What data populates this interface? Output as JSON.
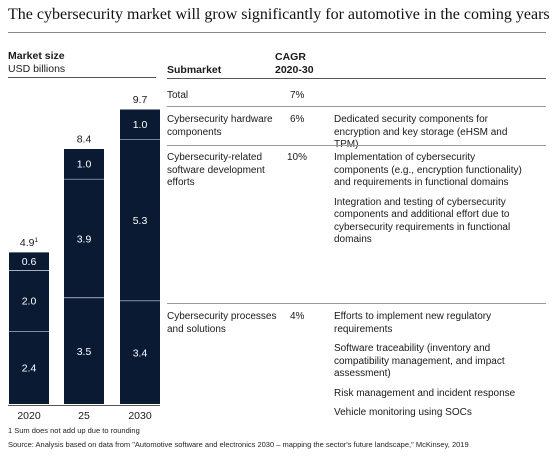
{
  "title": "The cybersecurity market will grow significantly for automotive in the coming years",
  "headers": {
    "market_size": "Market size",
    "unit": "USD billions",
    "submarket": "Submarket",
    "cagr_line1": "CAGR",
    "cagr_line2": "2020-30"
  },
  "rows": [
    {
      "name": "Total",
      "cagr": "7%",
      "descriptions": []
    },
    {
      "name": "Cybersecurity hardware components",
      "cagr": "6%",
      "descriptions": [
        "Dedicated security components for encryption and key storage (eHSM and TPM)"
      ]
    },
    {
      "name": "Cybersecurity-related software development efforts",
      "cagr": "10%",
      "descriptions": [
        "Implementation of cybersecurity components (e.g., encryption functionality) and requirements in functional domains",
        "Integration and testing of cybersecurity components and additional effort due to cybersecurity requirements in functional domains"
      ]
    },
    {
      "name": "Cybersecurity processes and solutions",
      "cagr": "4%",
      "descriptions": [
        "Efforts to implement new regulatory requirements",
        "Software traceability (inventory and compatibility management, and impact assessment)",
        "Risk management and incident response",
        "Vehicle monitoring using SOCs"
      ]
    }
  ],
  "chart_data": {
    "type": "bar",
    "stacked": true,
    "categories": [
      "2020",
      "25",
      "2030"
    ],
    "totals": [
      "4.9",
      "8.4",
      "9.7"
    ],
    "total_footnote_marker": "1",
    "series": [
      {
        "name": "Cybersecurity processes and solutions",
        "values": [
          2.4,
          3.5,
          3.4
        ]
      },
      {
        "name": "Cybersecurity-related software development efforts",
        "values": [
          2.0,
          3.9,
          5.3
        ]
      },
      {
        "name": "Cybersecurity hardware components",
        "values": [
          0.6,
          1.0,
          1.0
        ]
      }
    ],
    "ylim": [
      0,
      9.7
    ],
    "colors": {
      "bar": "#0a1a33",
      "separator": "#ffffff",
      "label": "#ffffff"
    }
  },
  "footnotes": {
    "note": "1  Sum does not add up due to rounding",
    "source": "Source: Analysis based on data from \"Automotive software and electronics 2030 – mapping the sector's future landscape,\" McKinsey, 2019"
  }
}
